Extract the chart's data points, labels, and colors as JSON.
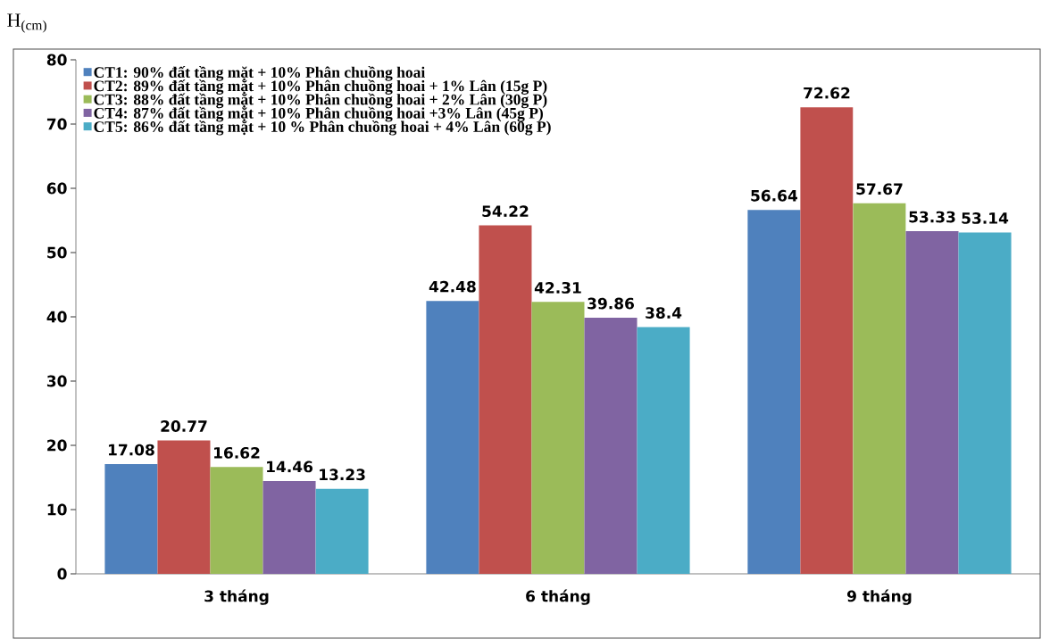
{
  "chart_data": {
    "type": "bar",
    "ylabel": "H$_{(cm)}$",
    "categories": [
      "3 tháng",
      "6 tháng",
      "9 tháng"
    ],
    "series": [
      {
        "name": "CT1: 90% đất tầng mặt + 10% Phân chuồng hoai",
        "color": "#4f81bd",
        "values": [
          17.08,
          42.48,
          56.64
        ]
      },
      {
        "name": "CT2: 89% đất tầng mặt + 10% Phân chuồng hoai + 1% Lân (15g P)",
        "color": "#c0504d",
        "values": [
          20.77,
          54.22,
          72.62
        ]
      },
      {
        "name": "CT3: 88% đất tầng mặt + 10% Phân chuồng hoai + 2% Lân (30g P)",
        "color": "#9bbb59",
        "values": [
          16.62,
          42.31,
          57.67
        ]
      },
      {
        "name": "CT4: 87% đất tầng mặt + 10% Phân chuồng hoai +3% Lân (45g P)",
        "color": "#8064a2",
        "values": [
          14.46,
          39.86,
          53.33
        ]
      },
      {
        "name": "CT5: 86% đất tầng mặt + 10 % Phân chuồng hoai + 4% Lân (60g P)",
        "color": "#4bacc6",
        "values": [
          13.23,
          38.4,
          53.14
        ]
      }
    ],
    "ylim": [
      0,
      80
    ],
    "yticks": [
      0,
      10,
      20,
      30,
      40,
      50,
      60,
      70,
      80
    ],
    "grid": false,
    "legend": "top left",
    "data_labels": true
  }
}
